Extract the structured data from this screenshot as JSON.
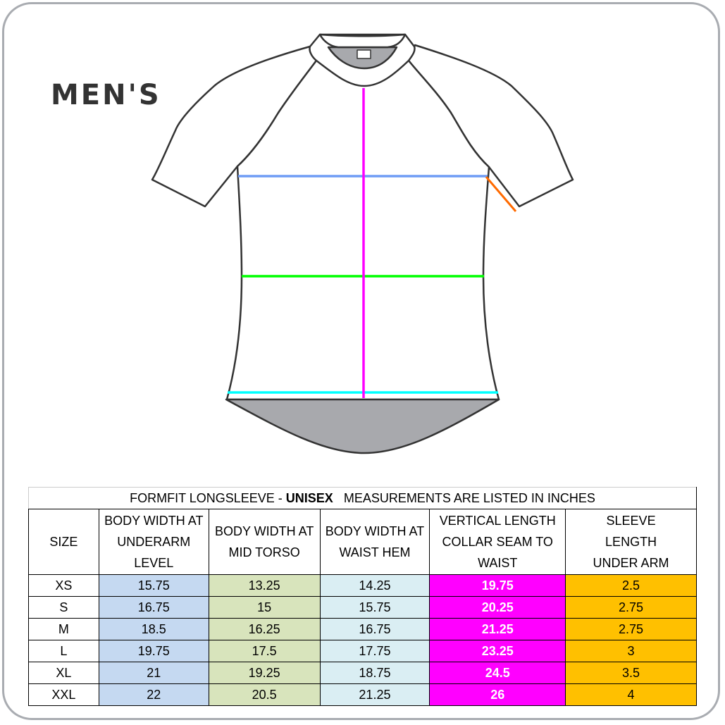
{
  "heading": "MEN'S",
  "table": {
    "title_prefix": "FORMFIT LONGSLEEVE - ",
    "title_bold": "UNISEX",
    "title_suffix": "MEASUREMENTS ARE LISTED IN INCHES",
    "headers": [
      "SIZE",
      "BODY WIDTH AT UNDERARM LEVEL",
      "BODY WIDTH AT MID TORSO",
      "BODY WIDTH AT WAIST HEM",
      "VERTICAL LENGTH COLLAR SEAM TO WAIST",
      "SLEEVE LENGTH UNDER ARM"
    ],
    "rows": [
      [
        "XS",
        "15.75",
        "13.25",
        "14.25",
        "19.75",
        "2.5"
      ],
      [
        "S",
        "16.75",
        "15",
        "15.75",
        "20.25",
        "2.75"
      ],
      [
        "M",
        "18.5",
        "16.25",
        "16.75",
        "21.25",
        "2.75"
      ],
      [
        "L",
        "19.75",
        "17.5",
        "17.75",
        "23.25",
        "3"
      ],
      [
        "XL",
        "21",
        "19.25",
        "18.75",
        "24.5",
        "3.5"
      ],
      [
        "XXL",
        "22",
        "20.5",
        "21.25",
        "26",
        "4"
      ]
    ],
    "column_colors": [
      "#ffffff",
      "#c5d9f1",
      "#d8e4bc",
      "#daeef3",
      "#ff00ff",
      "#ffc000"
    ]
  },
  "measure_line_colors": {
    "underarm": "#6f9cf5",
    "mid_torso": "#00ff00",
    "waist_hem": "#00ffff",
    "vertical_length": "#ff00ff",
    "sleeve": "#ff6a00"
  }
}
